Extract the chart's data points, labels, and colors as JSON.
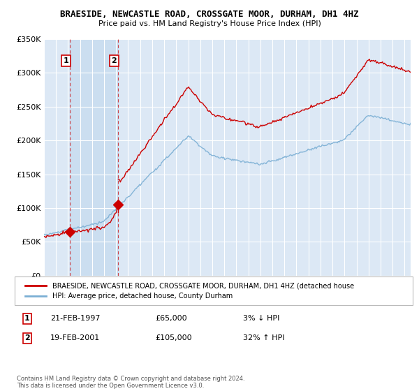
{
  "title": "BRAESIDE, NEWCASTLE ROAD, CROSSGATE MOOR, DURHAM, DH1 4HZ",
  "subtitle": "Price paid vs. HM Land Registry's House Price Index (HPI)",
  "legend_line1": "BRAESIDE, NEWCASTLE ROAD, CROSSGATE MOOR, DURHAM, DH1 4HZ (detached house",
  "legend_line2": "HPI: Average price, detached house, County Durham",
  "footnote": "Contains HM Land Registry data © Crown copyright and database right 2024.\nThis data is licensed under the Open Government Licence v3.0.",
  "transaction1_label": "1",
  "transaction1_date": "21-FEB-1997",
  "transaction1_price": "£65,000",
  "transaction1_hpi": "3% ↓ HPI",
  "transaction2_label": "2",
  "transaction2_date": "19-FEB-2001",
  "transaction2_price": "£105,000",
  "transaction2_hpi": "32% ↑ HPI",
  "ylim": [
    0,
    350000
  ],
  "yticks": [
    0,
    50000,
    100000,
    150000,
    200000,
    250000,
    300000,
    350000
  ],
  "bg_color": "#dce8f5",
  "plot_bg": "#dce8f5",
  "grid_color": "#ffffff",
  "red_line_color": "#cc0000",
  "blue_line_color": "#7bafd4",
  "dashed_line_color": "#cc0000",
  "shade_color": "#c8ddf0",
  "transaction1_x": 1997.13,
  "transaction1_y": 65000,
  "transaction2_x": 2001.13,
  "transaction2_y": 105000,
  "xmin": 1995,
  "xmax": 2025.5
}
